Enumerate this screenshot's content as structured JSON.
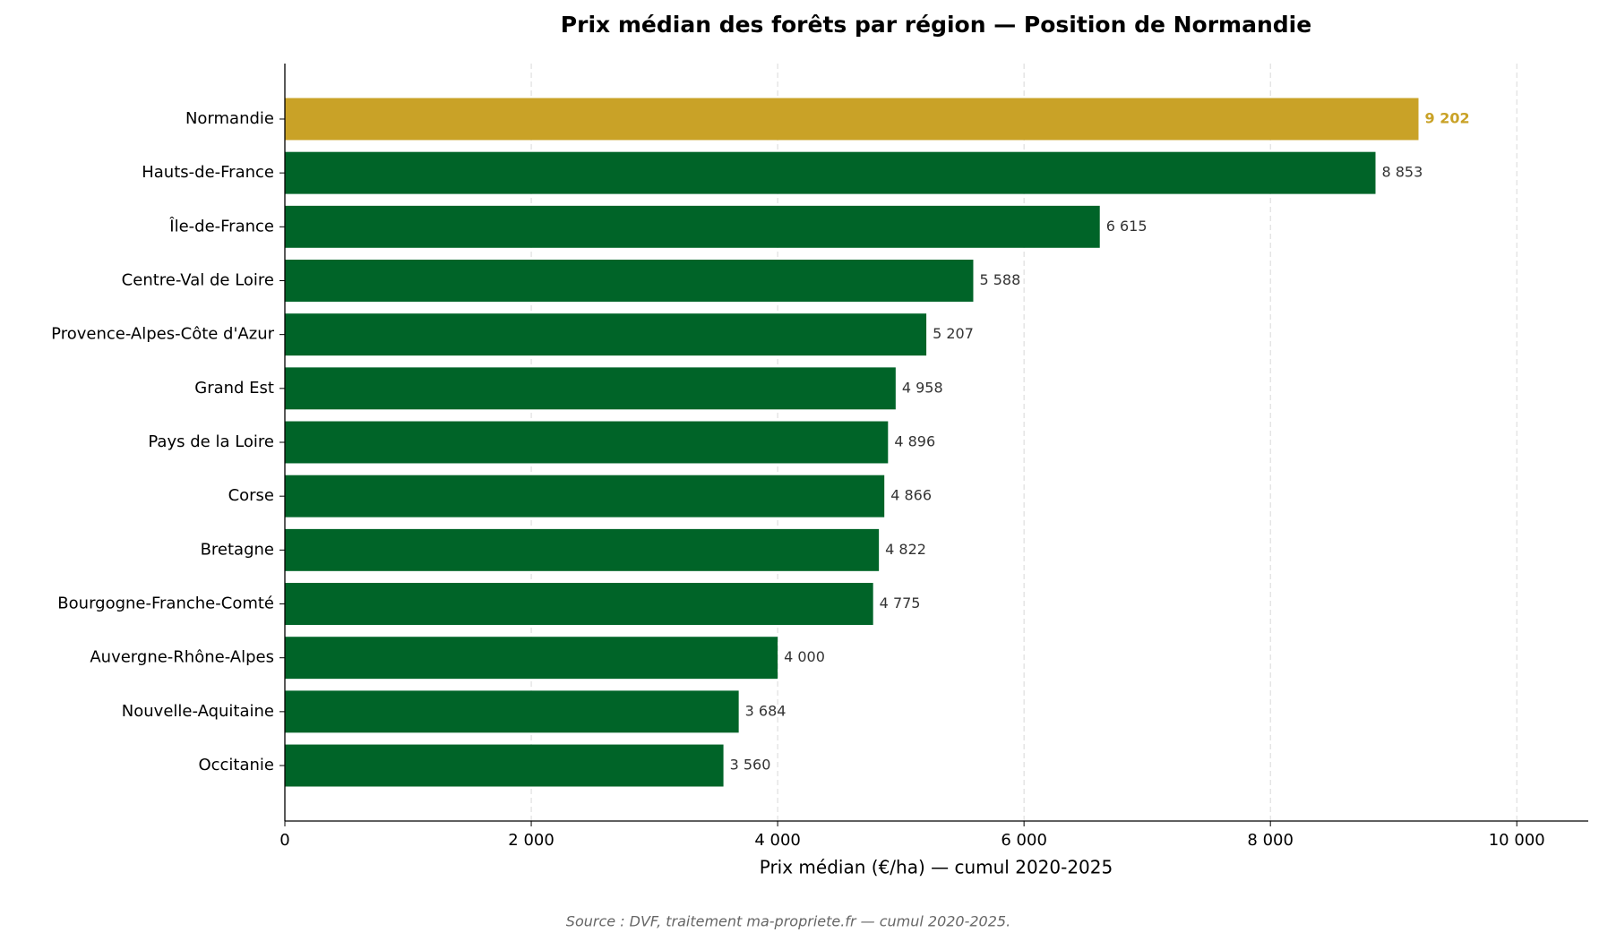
{
  "chart_data": {
    "type": "barh",
    "title": "Prix médian des forêts par région — Position de Normandie",
    "x_label": "Prix médian (€/ha) — cumul 2020-2025",
    "source": "Source : DVF, traitement ma-propriete.fr — cumul 2020-2025.",
    "categories": [
      "Normandie",
      "Hauts-de-France",
      "Île-de-France",
      "Centre-Val de Loire",
      "Provence-Alpes-Côte d'Azur",
      "Grand Est",
      "Pays de la Loire",
      "Corse",
      "Bretagne",
      "Bourgogne-Franche-Comté",
      "Auvergne-Rhône-Alpes",
      "Nouvelle-Aquitaine",
      "Occitanie"
    ],
    "values": [
      9202,
      8853,
      6615,
      5588,
      5207,
      4958,
      4896,
      4866,
      4822,
      4775,
      4000,
      3684,
      3560
    ],
    "value_labels": [
      "9 202",
      "8 853",
      "6 615",
      "5 588",
      "5 207",
      "4 958",
      "4 896",
      "4 866",
      "4 822",
      "4 775",
      "4 000",
      "3 684",
      "3 560"
    ],
    "colors": [
      "#c9a227",
      "#006428",
      "#006428",
      "#006428",
      "#006428",
      "#006428",
      "#006428",
      "#006428",
      "#006428",
      "#006428",
      "#006428",
      "#006428",
      "#006428"
    ],
    "xlim": [
      0,
      10580
    ],
    "xticks": [
      0,
      {
        "value": 2000,
        "label": "2 000"
      },
      {
        "value": 4000,
        "label": "4 000"
      },
      {
        "value": 6000,
        "label": "6 000"
      },
      {
        "value": 8000,
        "label": "8 000"
      },
      {
        "value": 10000,
        "label": "10 000"
      }
    ],
    "grid": true
  }
}
